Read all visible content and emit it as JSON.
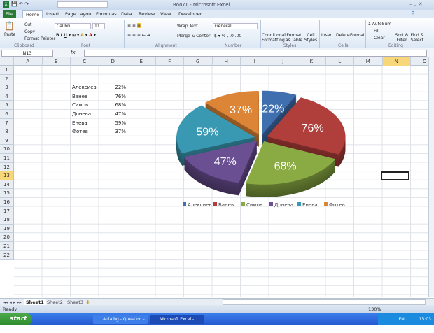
{
  "window": {
    "title": "Book1 - Microsoft Excel"
  },
  "tabs": [
    "File",
    "Home",
    "Insert",
    "Page Layout",
    "Formulas",
    "Data",
    "Review",
    "View",
    "Developer"
  ],
  "ribbon": {
    "clipboard": {
      "paste": "Paste",
      "cut": "Cut",
      "copy": "Copy",
      "format_painter": "Format Painter",
      "label": "Clipboard"
    },
    "font": {
      "name": "Calibri",
      "size": "11",
      "label": "Font"
    },
    "alignment": {
      "wrap": "Wrap Text",
      "merge": "Merge & Center",
      "label": "Alignment"
    },
    "number": {
      "format": "General",
      "label": "Number"
    },
    "styles": {
      "conditional": "Conditional Formatting",
      "format_table": "Format as Table",
      "cell_styles": "Cell Styles",
      "label": "Styles"
    },
    "cells": {
      "insert": "Insert",
      "delete": "Delete",
      "format": "Format",
      "label": "Cells"
    },
    "editing": {
      "autosum": "AutoSum",
      "fill": "Fill",
      "clear": "Clear",
      "sort": "Sort & Filter",
      "find": "Find & Select",
      "label": "Editing"
    }
  },
  "formula_bar": {
    "name_box": "N13",
    "fx": "fx",
    "value": ""
  },
  "columns": [
    "A",
    "B",
    "C",
    "D",
    "E",
    "F",
    "G",
    "H",
    "I",
    "J",
    "K",
    "L",
    "M",
    "N",
    "O"
  ],
  "rows": [
    "1",
    "2",
    "3",
    "4",
    "5",
    "6",
    "7",
    "8",
    "9",
    "10",
    "11",
    "12",
    "13",
    "14",
    "15",
    "16",
    "17",
    "18",
    "19",
    "20",
    "21",
    "22"
  ],
  "selected_cell": "N13",
  "cells": [
    {
      "name": "Алексиев",
      "value": "22%"
    },
    {
      "name": "Ванев",
      "value": "76%"
    },
    {
      "name": "Симов",
      "value": "68%"
    },
    {
      "name": "Донева",
      "value": "47%"
    },
    {
      "name": "Енева",
      "value": "59%"
    },
    {
      "name": "Фотев",
      "value": "37%"
    }
  ],
  "chart_data": {
    "type": "pie",
    "style": "3d-exploded",
    "categories": [
      "Алексиев",
      "Ванев",
      "Симов",
      "Донева",
      "Енева",
      "Фотев"
    ],
    "values": [
      22,
      76,
      68,
      47,
      59,
      37
    ],
    "labels": [
      "22%",
      "76%",
      "68%",
      "47%",
      "59%",
      "37%"
    ],
    "colors": [
      "#3f6fae",
      "#b03e3b",
      "#8aab44",
      "#6b4f93",
      "#3a99b2",
      "#dd8536"
    ],
    "legend": "bottom"
  },
  "sheets": [
    "Sheet1",
    "Sheet2",
    "Sheet3"
  ],
  "status": {
    "ready": "Ready",
    "zoom": "130%"
  },
  "taskbar": {
    "start": "start",
    "tasks": [
      "Aula.bg - Question - ...",
      "Microsoft Excel - Book1"
    ],
    "lang": "EN",
    "clock": "15:03"
  }
}
